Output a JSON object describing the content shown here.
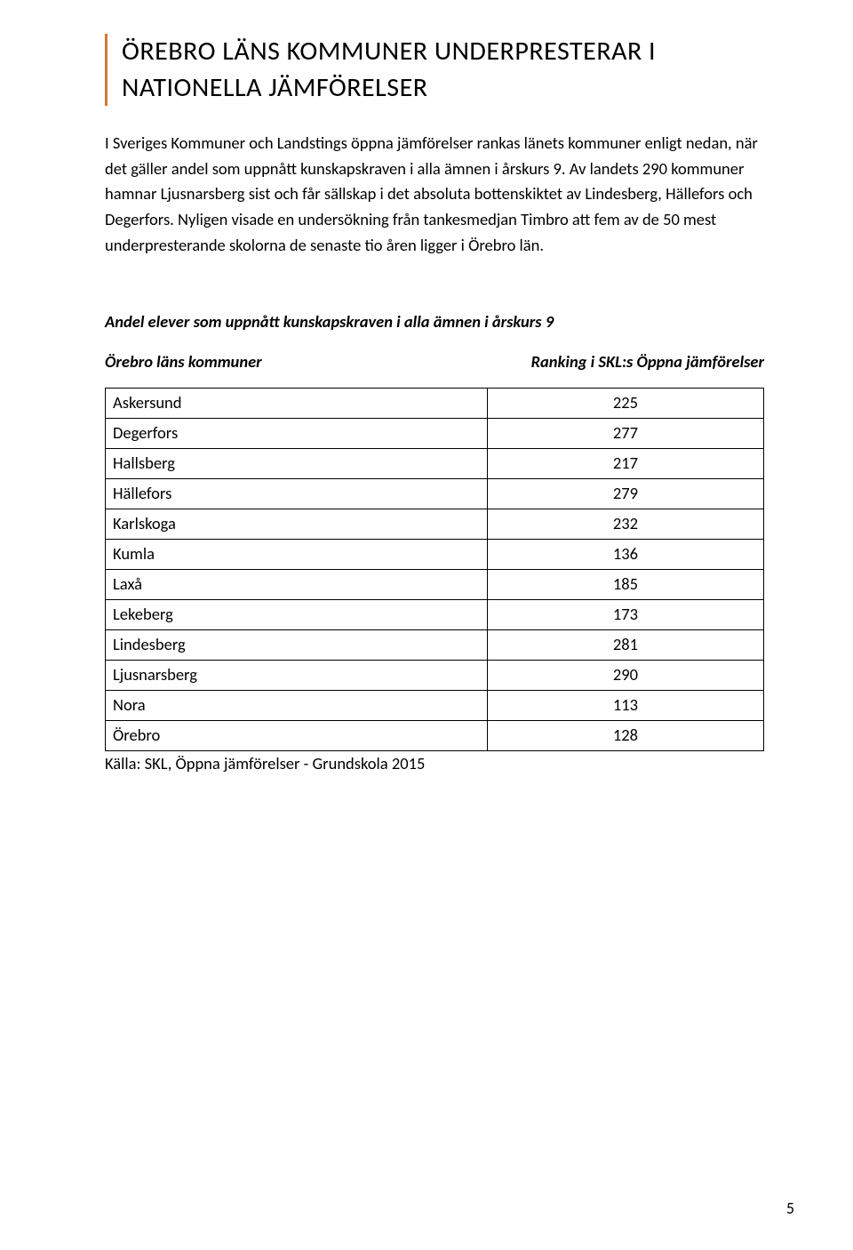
{
  "heading": "ÖREBRO LÄNS KOMMUNER UNDERPRESTERAR I NATIONELLA JÄMFÖRELSER",
  "body": "I Sveriges Kommuner och Landstings öppna jämförelser rankas länets kommuner enligt nedan, när det gäller andel som uppnått kunskapskraven i alla ämnen i årskurs 9. Av landets 290 kommuner hamnar Ljusnarsberg sist och får sällskap i det absoluta bottenskiktet av Lindesberg, Hällefors och Degerfors. Nyligen visade en undersökning från tankesmedjan Timbro att fem av de 50 mest underpresterande skolorna de senaste tio åren ligger i Örebro län.",
  "table": {
    "type": "table",
    "title": "Andel elever som uppnått kunskapskraven i alla ämnen i årskurs 9",
    "col_left": "Örebro läns kommuner",
    "col_right": "Ranking i SKL:s Öppna jämförelser",
    "border_color": "#000000",
    "font_size": 18.5,
    "rows": [
      {
        "name": "Askersund",
        "rank": "225"
      },
      {
        "name": "Degerfors",
        "rank": "277"
      },
      {
        "name": "Hallsberg",
        "rank": "217"
      },
      {
        "name": "Hällefors",
        "rank": "279"
      },
      {
        "name": "Karlskoga",
        "rank": "232"
      },
      {
        "name": "Kumla",
        "rank": "136"
      },
      {
        "name": "Laxå",
        "rank": "185"
      },
      {
        "name": "Lekeberg",
        "rank": "173"
      },
      {
        "name": "Lindesberg",
        "rank": "281"
      },
      {
        "name": "Ljusnarsberg",
        "rank": "290"
      },
      {
        "name": "Nora",
        "rank": "113"
      },
      {
        "name": "Örebro",
        "rank": "128"
      }
    ],
    "source": "Källa: SKL, Öppna jämförelser - Grundskola 2015"
  },
  "page_number": "5",
  "colors": {
    "accent": "#d37731",
    "text": "#000000",
    "background": "#ffffff"
  }
}
